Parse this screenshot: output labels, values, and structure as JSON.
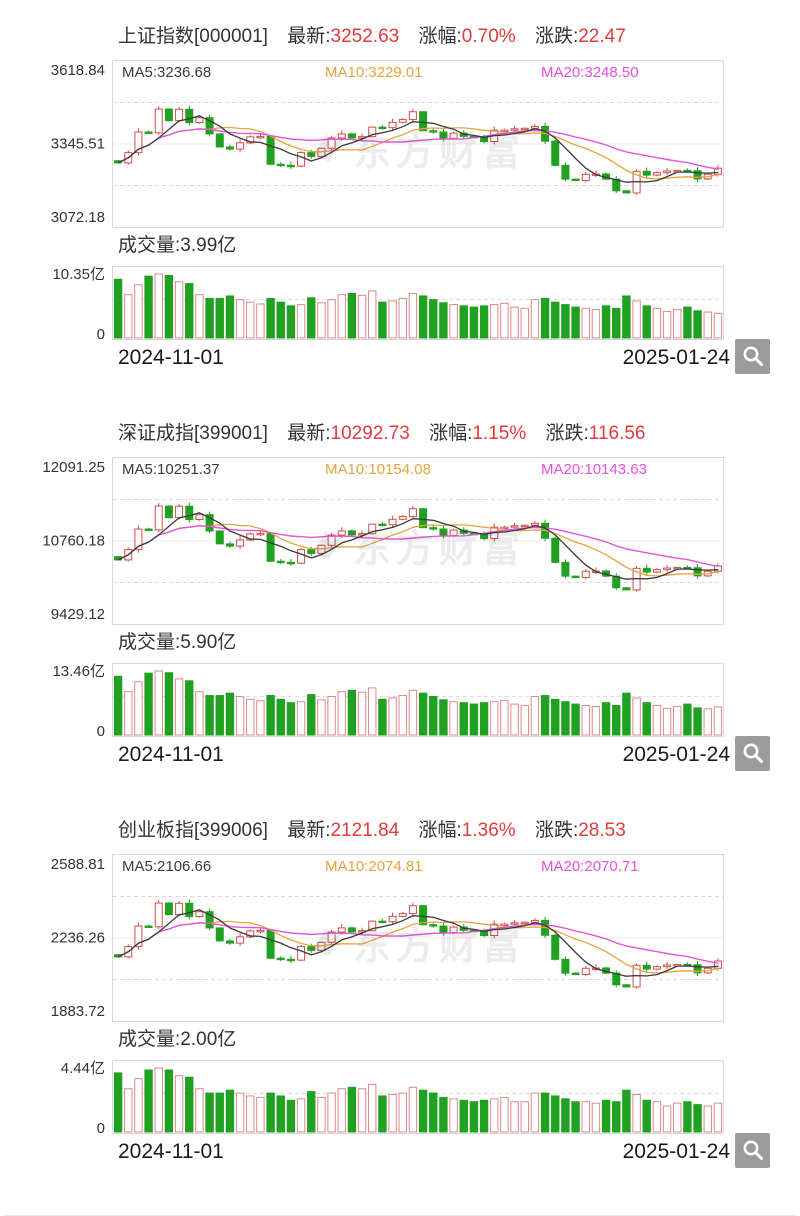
{
  "watermark": "东方财富",
  "colors": {
    "up_red": "#cf4e4a",
    "up_volume_red": "#dd8a88",
    "down_green": "#21a121",
    "value_red": "#e23b3b",
    "ma5": "#3a3a3a",
    "ma10": "#e6a43e",
    "ma20": "#e455dd",
    "grid": "#d9d9d9",
    "mid_line": "#ececec",
    "magnifier_bg": "#9b9b9b"
  },
  "charts": [
    {
      "title": "上证指数[000001]",
      "latest_label": "最新:",
      "latest": "3252.63",
      "pct_label": "涨幅:",
      "pct": "0.70%",
      "chg_label": "涨跌:",
      "chg": "22.47",
      "ma5": "MA5:3236.68",
      "ma10": "MA10:3229.01",
      "ma20": "MA20:3248.50",
      "y_top": "3618.84",
      "y_mid": "3345.51",
      "y_bottom": "3072.18",
      "vol_title": "成交量:3.99亿",
      "vol_max": "10.35亿",
      "vol_zero": "0",
      "date_start": "2024-11-01",
      "date_end": "2025-01-24"
    },
    {
      "title": "深证成指[399001]",
      "latest_label": "最新:",
      "latest": "10292.73",
      "pct_label": "涨幅:",
      "pct": "1.15%",
      "chg_label": "涨跌:",
      "chg": "116.56",
      "ma5": "MA5:10251.37",
      "ma10": "MA10:10154.08",
      "ma20": "MA20:10143.63",
      "y_top": "12091.25",
      "y_mid": "10760.18",
      "y_bottom": "9429.12",
      "vol_title": "成交量:5.90亿",
      "vol_max": "13.46亿",
      "vol_zero": "0",
      "date_start": "2024-11-01",
      "date_end": "2025-01-24"
    },
    {
      "title": "创业板指[399006]",
      "latest_label": "最新:",
      "latest": "2121.84",
      "pct_label": "涨幅:",
      "pct": "1.36%",
      "chg_label": "涨跌:",
      "chg": "28.53",
      "ma5": "MA5:2106.66",
      "ma10": "MA10:2074.81",
      "ma20": "MA20:2070.71",
      "y_top": "2588.81",
      "y_mid": "2236.26",
      "y_bottom": "1883.72",
      "vol_title": "成交量:2.00亿",
      "vol_max": "4.44亿",
      "vol_zero": "0",
      "date_start": "2024-11-01",
      "date_end": "2025-01-24"
    }
  ],
  "chart_data": [
    {
      "type": "candlestick",
      "title": "上证指数",
      "code": "000001",
      "latest": 3252.63,
      "change_pct": 0.7,
      "change": 22.47,
      "ma5": 3236.68,
      "ma10": 3229.01,
      "ma20": 3248.5,
      "y_axis": [
        3618.84,
        3345.51,
        3072.18
      ],
      "volume_axis_max": 10.35,
      "volume_latest": 3.99,
      "volume_unit": "亿",
      "x_start": "2024-11-01",
      "x_end": "2025-01-24",
      "first_open": 3280,
      "closes": [
        3272.01,
        3310,
        3386,
        3383,
        3471,
        3428,
        3470,
        3421,
        3439,
        3379,
        3331,
        3323,
        3346,
        3368,
        3370,
        3267,
        3263,
        3260,
        3310,
        3296,
        3326,
        3364,
        3379,
        3364,
        3369,
        3404,
        3402,
        3422,
        3432,
        3461,
        3391,
        3386,
        3362,
        3382,
        3370,
        3368,
        3351,
        3393,
        3393,
        3398,
        3400,
        3407,
        3352,
        3263,
        3212,
        3207,
        3230,
        3231,
        3212,
        3169,
        3161,
        3241,
        3227,
        3236,
        3242,
        3244,
        3243,
        3213,
        3230,
        3252.63
      ],
      "volumes": [
        9.5,
        7.0,
        8.6,
        10.0,
        10.35,
        10.1,
        9.1,
        8.8,
        7.0,
        6.4,
        6.4,
        6.8,
        6.2,
        5.8,
        5.5,
        6.4,
        5.8,
        5.2,
        5.4,
        6.5,
        5.7,
        6.2,
        7.0,
        7.2,
        6.9,
        7.6,
        5.8,
        6.0,
        6.4,
        7.2,
        6.8,
        6.2,
        5.7,
        5.4,
        5.2,
        5.0,
        5.2,
        5.4,
        5.6,
        5.0,
        4.8,
        6.2,
        6.4,
        5.8,
        5.4,
        5.0,
        4.8,
        4.6,
        5.2,
        4.8,
        6.8,
        6.0,
        5.2,
        4.8,
        4.3,
        4.6,
        5.0,
        4.4,
        4.2,
        3.99
      ]
    },
    {
      "type": "candlestick",
      "title": "深证成指",
      "code": "399001",
      "latest": 10292.73,
      "change_pct": 1.15,
      "change": 116.56,
      "ma5": 10251.37,
      "ma10": 10154.08,
      "ma20": 10143.63,
      "y_axis": [
        12091.25,
        10760.18,
        9429.12
      ],
      "volume_axis_max": 13.46,
      "volume_latest": 5.9,
      "volume_unit": "亿",
      "x_start": "2024-11-01",
      "x_end": "2025-01-24",
      "first_open": 10460,
      "closes": [
        10402,
        10587,
        10957,
        10943,
        11371,
        11162,
        11367,
        11128,
        11216,
        10923,
        10690,
        10650,
        10762,
        10870,
        10879,
        10378,
        10358,
        10344,
        10587,
        10519,
        10665,
        10850,
        10923,
        10850,
        10875,
        11045,
        11035,
        11133,
        11181,
        11323,
        10982,
        10957,
        10841,
        10938,
        10879,
        10870,
        10787,
        10991,
        10991,
        11016,
        11026,
        11060,
        10792,
        10358,
        10110,
        10086,
        10198,
        10202,
        10110,
        9901,
        9862,
        10251,
        10183,
        10227,
        10256,
        10266,
        10261,
        10115,
        10198,
        10292.73
      ],
      "volumes": [
        12.35,
        9.1,
        11.2,
        13.0,
        13.46,
        13.1,
        11.8,
        11.4,
        9.1,
        8.3,
        8.3,
        8.8,
        8.1,
        7.5,
        7.2,
        8.3,
        7.5,
        6.8,
        7.0,
        8.5,
        7.4,
        8.1,
        9.1,
        9.4,
        9.0,
        9.9,
        7.5,
        7.8,
        8.3,
        9.4,
        8.8,
        8.1,
        7.4,
        7.0,
        6.8,
        6.5,
        6.8,
        7.0,
        7.3,
        6.5,
        6.2,
        8.1,
        8.3,
        7.5,
        7.0,
        6.5,
        6.2,
        6.0,
        6.8,
        6.2,
        8.8,
        7.8,
        6.8,
        6.2,
        5.6,
        6.0,
        6.5,
        5.7,
        5.5,
        5.9
      ]
    },
    {
      "type": "candlestick",
      "title": "创业板指",
      "code": "399006",
      "latest": 2121.84,
      "change_pct": 1.36,
      "change": 28.53,
      "ma5": 2106.66,
      "ma10": 2074.81,
      "ma20": 2070.71,
      "y_axis": [
        2588.81,
        2236.26,
        1883.72
      ],
      "volume_axis_max": 4.44,
      "volume_latest": 2.0,
      "volume_unit": "亿",
      "x_start": "2024-11-01",
      "x_end": "2025-01-24",
      "first_open": 2152,
      "closes": [
        2141.5,
        2190.5,
        2288.5,
        2284.6,
        2398.2,
        2342.6,
        2396.9,
        2333.7,
        2356.9,
        2279.5,
        2217.6,
        2207.2,
        2236.9,
        2265.3,
        2267.9,
        2135.0,
        2129.9,
        2126.0,
        2190.5,
        2172.4,
        2211.1,
        2260.1,
        2279.5,
        2260.1,
        2266.6,
        2311.7,
        2309.1,
        2334.9,
        2347.8,
        2385.3,
        2294.9,
        2288.5,
        2257.6,
        2283.4,
        2267.9,
        2265.3,
        2243.4,
        2297.5,
        2297.5,
        2304.0,
        2306.5,
        2315.5,
        2244.7,
        2129.9,
        2064.1,
        2057.6,
        2087.3,
        2088.5,
        2064.1,
        2008.6,
        1998.3,
        2101.4,
        2083.4,
        2095.0,
        2102.8,
        2105.3,
        2104.1,
        2065.4,
        2087.3,
        2121.84
      ],
      "volumes": [
        4.1,
        3.0,
        3.7,
        4.3,
        4.44,
        4.3,
        3.9,
        3.8,
        3.0,
        2.7,
        2.7,
        2.9,
        2.7,
        2.5,
        2.4,
        2.7,
        2.5,
        2.2,
        2.3,
        2.8,
        2.4,
        2.7,
        3.0,
        3.1,
        3.0,
        3.3,
        2.5,
        2.6,
        2.7,
        3.1,
        2.9,
        2.7,
        2.4,
        2.3,
        2.2,
        2.1,
        2.2,
        2.3,
        2.4,
        2.1,
        2.1,
        2.7,
        2.7,
        2.5,
        2.3,
        2.1,
        2.1,
        2.0,
        2.2,
        2.1,
        2.9,
        2.6,
        2.2,
        2.1,
        1.8,
        2.0,
        2.1,
        1.9,
        1.8,
        2.0
      ]
    }
  ]
}
